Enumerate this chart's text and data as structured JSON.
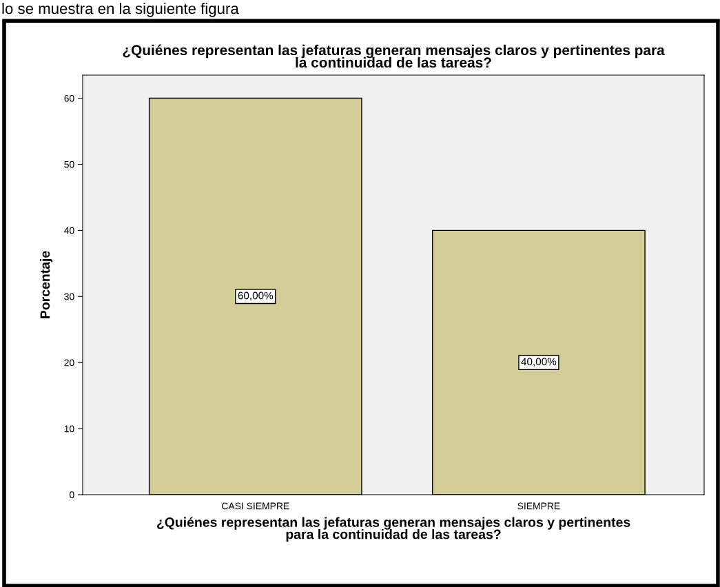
{
  "chart_data": {
    "type": "bar",
    "title": "¿Quiénes representan las jefaturas generan mensajes claros y pertinentes para\nla continuidad de las tareas?",
    "xlabel": "¿Quiénes representan las jefaturas generan mensajes claros y pertinentes\npara la continuidad de las tareas?",
    "ylabel": "Porcentaje",
    "annotations": [
      "lo se muestra en la siguiente figura"
    ],
    "categories": [
      "CASI SIEMPRE",
      "SIEMPRE"
    ],
    "values": [
      60,
      40
    ],
    "value_labels": [
      "60,00%",
      "40,00%"
    ],
    "color": "#d3ce97",
    "ylim": [
      0,
      63.5
    ],
    "yticks": [
      0,
      10,
      20,
      30,
      40,
      50,
      60
    ],
    "grid": false
  }
}
